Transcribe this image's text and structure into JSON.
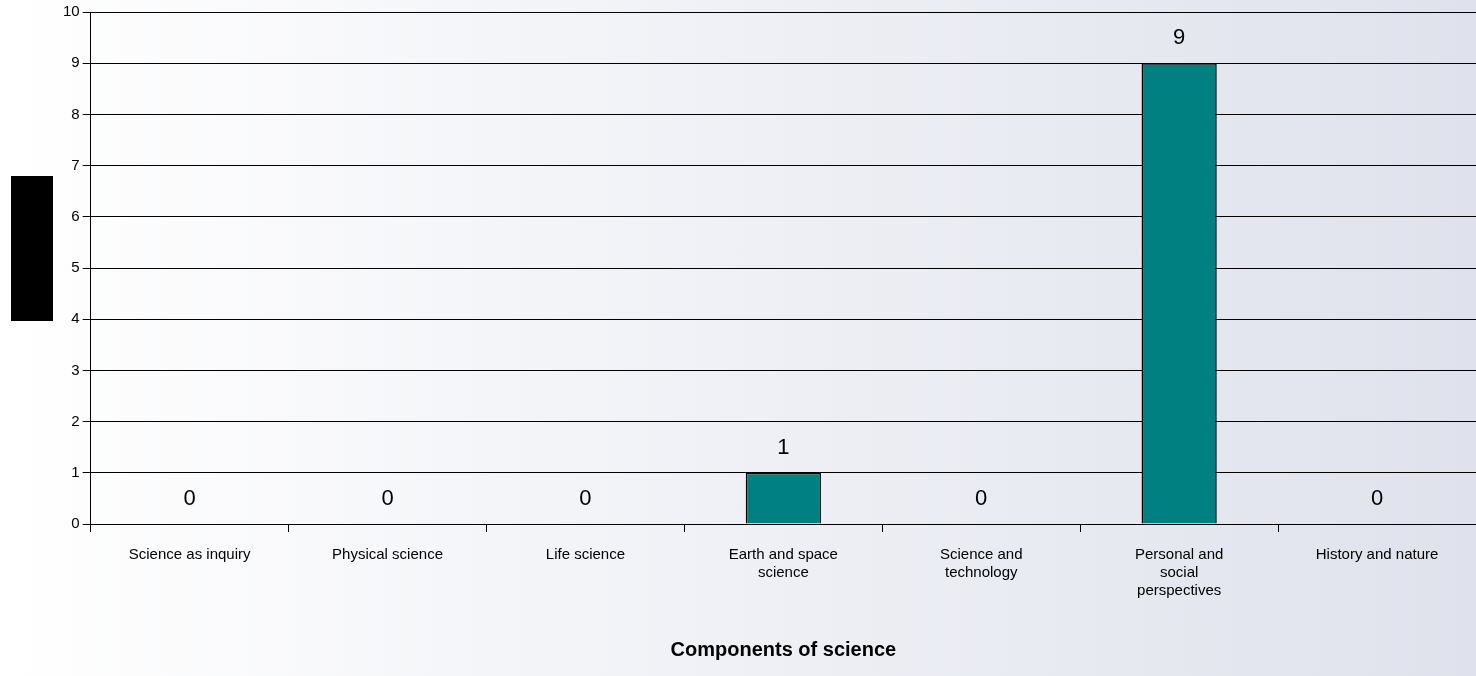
{
  "chart_data": {
    "type": "bar",
    "xlabel": "Components of science",
    "categories": [
      "Science as inquiry",
      "Physical science",
      "Life science",
      "Earth and space science",
      "Science and technology",
      "Personal and social perspectives",
      "History and nature"
    ],
    "values": [
      0,
      0,
      0,
      1,
      0,
      9,
      0
    ],
    "color": "#008080",
    "ylim": [
      0,
      10
    ],
    "yticks": [
      0,
      1,
      2,
      3,
      4,
      5,
      6,
      7,
      8,
      9,
      10
    ],
    "grid": "y",
    "data_labels": true,
    "legend": false
  }
}
